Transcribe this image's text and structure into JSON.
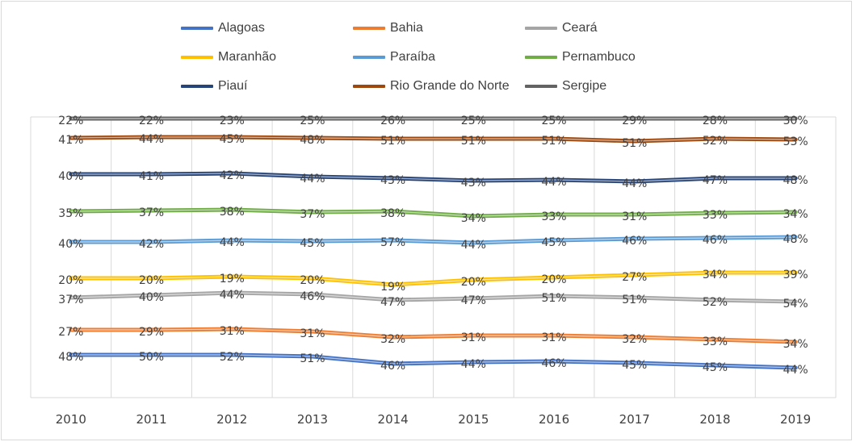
{
  "chart_data": {
    "type": "line",
    "categories": [
      "2010",
      "2011",
      "2012",
      "2013",
      "2014",
      "2015",
      "2016",
      "2017",
      "2018",
      "2019"
    ],
    "legend_position": "top",
    "grid": "vertical",
    "series": [
      {
        "name": "Alagoas",
        "color": "#4472c4",
        "labels": [
          "48%",
          "50%",
          "52%",
          "51%",
          "46%",
          "44%",
          "46%",
          "45%",
          "45%",
          "44%"
        ]
      },
      {
        "name": "Bahia",
        "color": "#ed7d31",
        "labels": [
          "27%",
          "29%",
          "31%",
          "31%",
          "32%",
          "31%",
          "31%",
          "32%",
          "33%",
          "34%"
        ]
      },
      {
        "name": "Ceará",
        "color": "#a5a5a5",
        "labels": [
          "37%",
          "40%",
          "44%",
          "46%",
          "47%",
          "47%",
          "51%",
          "51%",
          "52%",
          "54%"
        ]
      },
      {
        "name": "Maranhão",
        "color": "#ffc000",
        "labels": [
          "20%",
          "20%",
          "19%",
          "20%",
          "19%",
          "20%",
          "20%",
          "27%",
          "34%",
          "39%"
        ]
      },
      {
        "name": "Paraíba",
        "color": "#5b9bd5",
        "labels": [
          "40%",
          "42%",
          "44%",
          "45%",
          "57%",
          "44%",
          "45%",
          "46%",
          "46%",
          "48%"
        ]
      },
      {
        "name": "Pernambuco",
        "color": "#70ad47",
        "labels": [
          "35%",
          "37%",
          "38%",
          "37%",
          "38%",
          "34%",
          "33%",
          "31%",
          "33%",
          "34%"
        ]
      },
      {
        "name": "Piauí",
        "color": "#264478",
        "labels": [
          "40%",
          "41%",
          "42%",
          "44%",
          "43%",
          "43%",
          "44%",
          "44%",
          "47%",
          "48%"
        ]
      },
      {
        "name": "Rio Grande do Norte",
        "color": "#9e480e",
        "labels": [
          "41%",
          "44%",
          "45%",
          "48%",
          "51%",
          "51%",
          "51%",
          "51%",
          "52%",
          "53%"
        ]
      },
      {
        "name": "Sergipe",
        "color": "#636363",
        "labels": [
          "22%",
          "22%",
          "23%",
          "25%",
          "26%",
          "25%",
          "25%",
          "29%",
          "28%",
          "30%"
        ]
      }
    ]
  }
}
